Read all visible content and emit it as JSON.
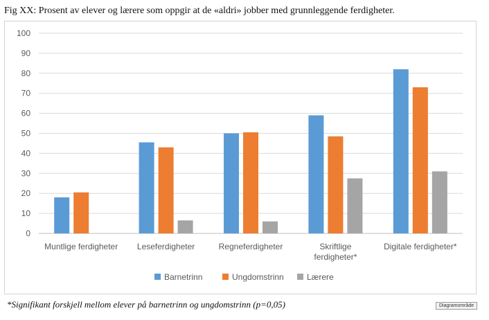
{
  "figure_title": "Fig XX: Prosent av elever og lærere som oppgir at de «aldri» jobber med grunnleggende ferdigheter.",
  "footnote": "*Signifikant forskjell mellom elever på barnetrinn og ungdomstrinn (p=0,05)",
  "chart_area_tag": "Diagramområde",
  "chart_data": {
    "type": "bar",
    "title": "",
    "xlabel": "",
    "ylabel": "",
    "ylim": [
      0,
      100
    ],
    "yticks": [
      0,
      10,
      20,
      30,
      40,
      50,
      60,
      70,
      80,
      90,
      100
    ],
    "grid": true,
    "legend_position": "bottom",
    "categories": [
      [
        "Muntlige ferdigheter"
      ],
      [
        "Leseferdigheter"
      ],
      [
        "Regneferdigheter"
      ],
      [
        "Skriftlige",
        "ferdigheter*"
      ],
      [
        "Digitale ferdigheter*"
      ]
    ],
    "series": [
      {
        "name": "Barnetrinn",
        "color": "#5b9bd5",
        "values": [
          18,
          45.5,
          50,
          59,
          82
        ]
      },
      {
        "name": "Ungdomstrinn",
        "color": "#ed7d31",
        "values": [
          20.5,
          43,
          50.5,
          48.5,
          73
        ]
      },
      {
        "name": "Lærere",
        "color": "#a5a5a5",
        "values": [
          null,
          6.5,
          6,
          27.5,
          31
        ]
      }
    ]
  }
}
